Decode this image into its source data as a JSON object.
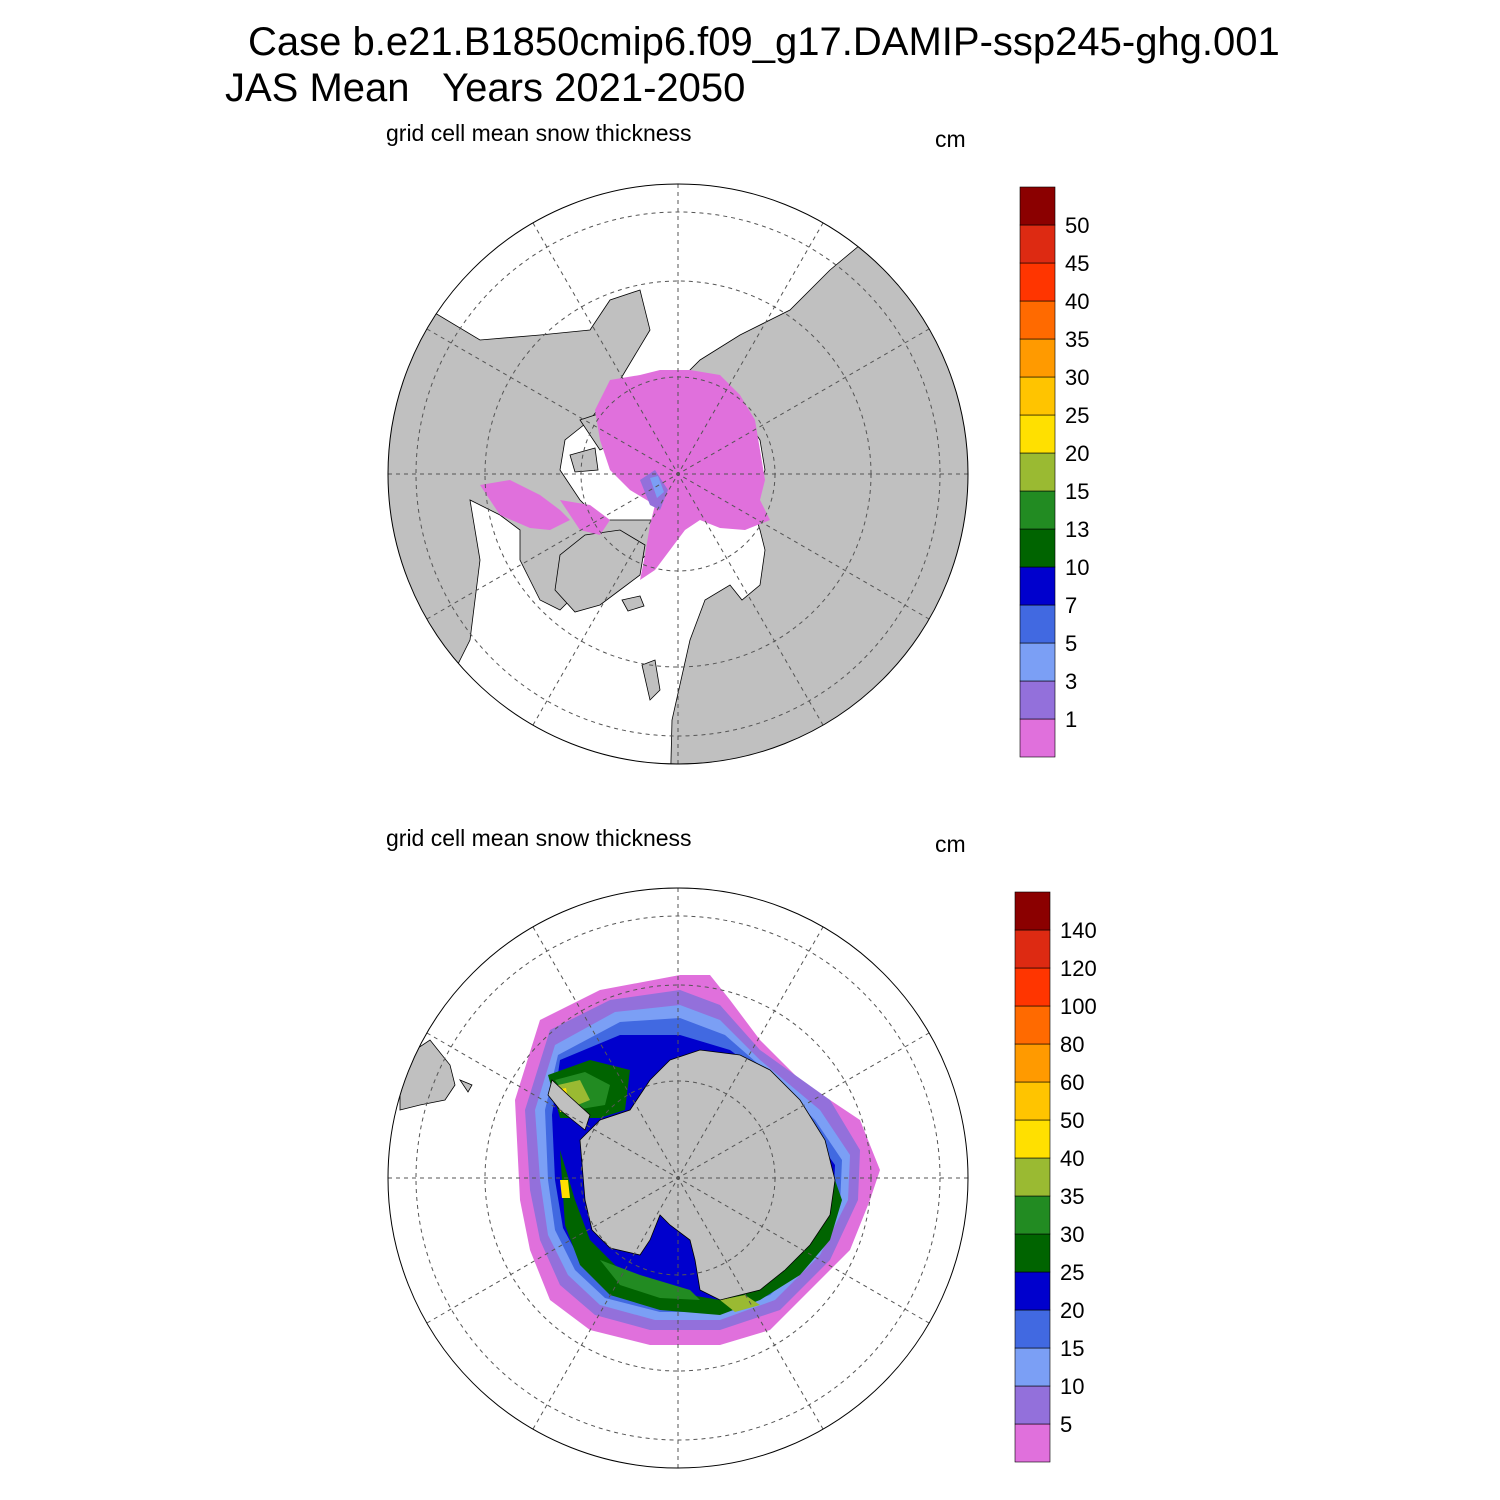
{
  "header": {
    "line1": "Case b.e21.B1850cmip6.f09_g17.DAMIP-ssp245-ghg.001",
    "line2": "JAS Mean   Years 2021-2050"
  },
  "panels": [
    {
      "id": "north",
      "subtitle": "grid cell mean snow thickness",
      "unit": "cm",
      "colorbar": {
        "labels": [
          "1",
          "3",
          "5",
          "7",
          "10",
          "13",
          "15",
          "20",
          "25",
          "30",
          "35",
          "40",
          "45",
          "50"
        ],
        "colors": [
          "#e070dc",
          "#9370db",
          "#7b9ff5",
          "#4169e1",
          "#0000cd",
          "#006400",
          "#228b22",
          "#9aba32",
          "#ffe000",
          "#ffc400",
          "#ff9a00",
          "#ff6a00",
          "#ff3500",
          "#dd2a12",
          "#8b0000"
        ]
      }
    },
    {
      "id": "south",
      "subtitle": "grid cell mean snow thickness",
      "unit": "cm",
      "colorbar": {
        "labels": [
          "5",
          "10",
          "15",
          "20",
          "25",
          "30",
          "35",
          "40",
          "50",
          "60",
          "80",
          "100",
          "120",
          "140"
        ],
        "colors": [
          "#e070dc",
          "#9370db",
          "#7b9ff5",
          "#4169e1",
          "#0000cd",
          "#006400",
          "#228b22",
          "#9aba32",
          "#ffe000",
          "#ffc400",
          "#ff9a00",
          "#ff6a00",
          "#ff3500",
          "#dd2a12",
          "#8b0000"
        ]
      }
    }
  ],
  "colors": {
    "land": "#c0c0c0",
    "ocean": "#ffffff",
    "grid": "#555555"
  }
}
